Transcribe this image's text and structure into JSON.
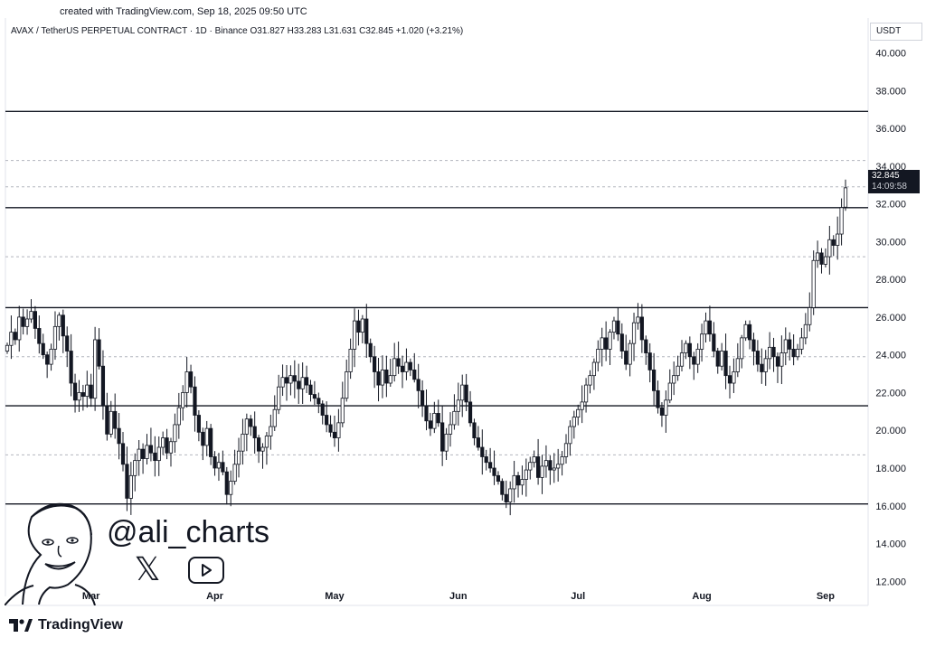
{
  "header": {
    "created_text": "created with TradingView.com, Sep 18, 2025 09:50 UTC"
  },
  "legend": {
    "text": "AVAX / TetherUS PERPETUAL CONTRACT · 1D · Binance  O31.827  H33.283  L31.631  C32.845  +1.020 (+3.21%)"
  },
  "price_scale": {
    "unit": "USDT",
    "last_price": "32.845",
    "countdown": "14:09:58"
  },
  "branding": {
    "footer_logo": "TradingView",
    "handle": "@ali_charts"
  },
  "icons": [
    "tradingview-logo-icon",
    "x-logo-icon",
    "youtube-play-icon",
    "caricature-avatar"
  ],
  "colors": {
    "candle_up": "#ffffff",
    "candle_down": "#131722",
    "wick": "#131722",
    "line": "#131722",
    "dashed": "#b2b5be"
  },
  "chart_data": {
    "type": "candlestick",
    "symbol": "AVAX / TetherUS PERPETUAL CONTRACT",
    "interval": "1D",
    "exchange": "Binance",
    "last": {
      "open": 31.827,
      "high": 33.283,
      "low": 31.631,
      "close": 32.845,
      "change": 1.02,
      "change_pct": 3.21
    },
    "ylim": [
      11.2,
      40.6
    ],
    "yticks": [
      "12.000",
      "14.000",
      "16.000",
      "18.000",
      "20.000",
      "22.000",
      "24.000",
      "26.000",
      "28.000",
      "30.000",
      "32.000",
      "34.000",
      "36.000",
      "38.000",
      "40.000"
    ],
    "xticks": [
      {
        "label": "Mar",
        "day": 21
      },
      {
        "label": "Apr",
        "day": 52
      },
      {
        "label": "May",
        "day": 82
      },
      {
        "label": "Jun",
        "day": 113
      },
      {
        "label": "Jul",
        "day": 143
      },
      {
        "label": "Aug",
        "day": 174
      },
      {
        "label": "Sep",
        "day": 205
      }
    ],
    "horizontal_levels": [
      {
        "price": 36.9,
        "style": "solid"
      },
      {
        "price": 34.3,
        "style": "dashed"
      },
      {
        "price": 32.9,
        "style": "dashed"
      },
      {
        "price": 31.8,
        "style": "solid"
      },
      {
        "price": 29.2,
        "style": "dashed"
      },
      {
        "price": 26.5,
        "style": "solid"
      },
      {
        "price": 23.9,
        "style": "dashed"
      },
      {
        "price": 21.3,
        "style": "solid"
      },
      {
        "price": 18.7,
        "style": "dashed"
      },
      {
        "price": 16.1,
        "style": "solid"
      }
    ],
    "closes": [
      24.5,
      25.2,
      24.8,
      26.0,
      25.5,
      25.9,
      26.3,
      25.4,
      24.6,
      24.0,
      23.5,
      24.3,
      25.5,
      26.1,
      25.0,
      24.2,
      22.5,
      21.6,
      22.0,
      21.8,
      22.4,
      21.7,
      24.8,
      23.4,
      21.3,
      19.8,
      21.0,
      20.1,
      19.3,
      18.2,
      16.4,
      17.6,
      18.4,
      19.0,
      18.5,
      19.2,
      18.8,
      18.4,
      19.1,
      19.6,
      18.8,
      19.4,
      20.3,
      21.2,
      22.0,
      23.1,
      22.3,
      20.8,
      19.9,
      19.2,
      20.1,
      18.6,
      18.0,
      18.3,
      17.8,
      16.6,
      17.3,
      18.2,
      18.9,
      19.8,
      20.6,
      20.2,
      19.6,
      18.9,
      19.1,
      19.7,
      20.2,
      21.1,
      22.3,
      22.8,
      22.5,
      22.9,
      22.6,
      22.2,
      22.8,
      22.4,
      21.9,
      21.7,
      21.4,
      20.8,
      20.3,
      19.9,
      19.6,
      20.4,
      21.7,
      23.1,
      24.3,
      25.8,
      25.2,
      25.9,
      24.6,
      23.9,
      23.1,
      22.4,
      23.2,
      22.5,
      22.9,
      23.8,
      23.4,
      23.1,
      23.6,
      23.2,
      22.7,
      22.1,
      21.3,
      20.5,
      20.1,
      20.9,
      20.4,
      18.9,
      19.8,
      20.3,
      21.0,
      21.6,
      22.4,
      21.5,
      20.4,
      19.6,
      19.1,
      18.6,
      18.3,
      18.0,
      17.6,
      17.3,
      16.6,
      16.2,
      16.9,
      17.6,
      17.1,
      17.4,
      17.9,
      18.3,
      18.6,
      17.5,
      18.1,
      18.4,
      17.9,
      18.0,
      18.2,
      18.6,
      19.3,
      20.2,
      20.7,
      21.1,
      21.5,
      22.4,
      22.9,
      23.6,
      24.3,
      24.9,
      24.3,
      25.2,
      25.8,
      25.1,
      24.2,
      23.5,
      24.6,
      25.7,
      26.0,
      24.8,
      24.1,
      23.2,
      22.1,
      21.2,
      20.8,
      21.6,
      22.5,
      22.9,
      23.4,
      24.1,
      24.6,
      23.9,
      23.5,
      24.3,
      25.1,
      25.8,
      25.1,
      24.2,
      23.4,
      24.2,
      22.9,
      22.5,
      23.1,
      23.8,
      24.9,
      25.6,
      24.8,
      24.2,
      23.5,
      23.1,
      23.8,
      24.4,
      23.9,
      23.4,
      24.1,
      24.8,
      24.3,
      23.9,
      24.3,
      24.9,
      25.6,
      26.5,
      29.0,
      29.4,
      28.8,
      29.2,
      30.1,
      29.8,
      30.4,
      31.8,
      32.85
    ]
  }
}
